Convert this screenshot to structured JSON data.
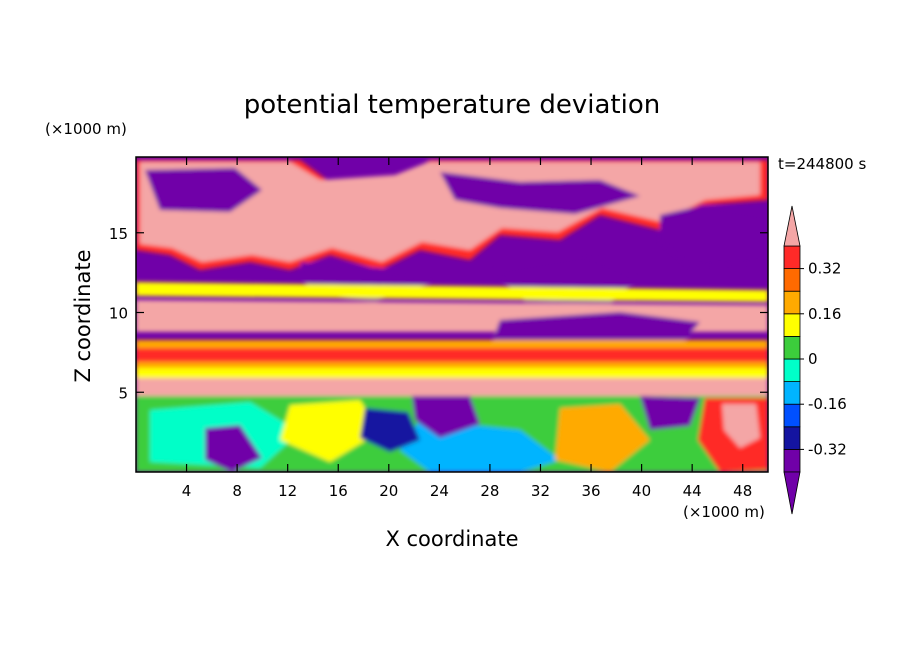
{
  "chart_data": {
    "type": "heatmap",
    "title": "potential temperature deviation",
    "xlabel": "X coordinate",
    "ylabel": "Z coordinate",
    "x_unit": "(×1000 m)",
    "y_unit": "(×1000 m)",
    "time_label": "t=244800 s",
    "xlim": [
      0,
      50
    ],
    "ylim": [
      0,
      19.75
    ],
    "x_ticks": [
      4,
      8,
      12,
      16,
      20,
      24,
      28,
      32,
      36,
      40,
      44,
      48
    ],
    "y_ticks": [
      5,
      10,
      15
    ],
    "colorbar": {
      "levels": [
        -0.4,
        -0.32,
        -0.24,
        -0.16,
        -0.08,
        0,
        0.08,
        0.16,
        0.24,
        0.32,
        0.4
      ],
      "colors": [
        "#7000a8",
        "#1414a0",
        "#0050ff",
        "#00b4ff",
        "#00ffc8",
        "#3ccd3c",
        "#ffff00",
        "#ffaa00",
        "#ff6a00",
        "#ff2a28"
      ],
      "under_color": "#7000a8",
      "over_color": "#f4a6a6",
      "tick_labels": [
        "0.32",
        "0.16",
        "0",
        "-0.16",
        "-0.32"
      ],
      "tick_values": [
        0.32,
        0.16,
        0,
        -0.16,
        -0.32
      ]
    }
  }
}
